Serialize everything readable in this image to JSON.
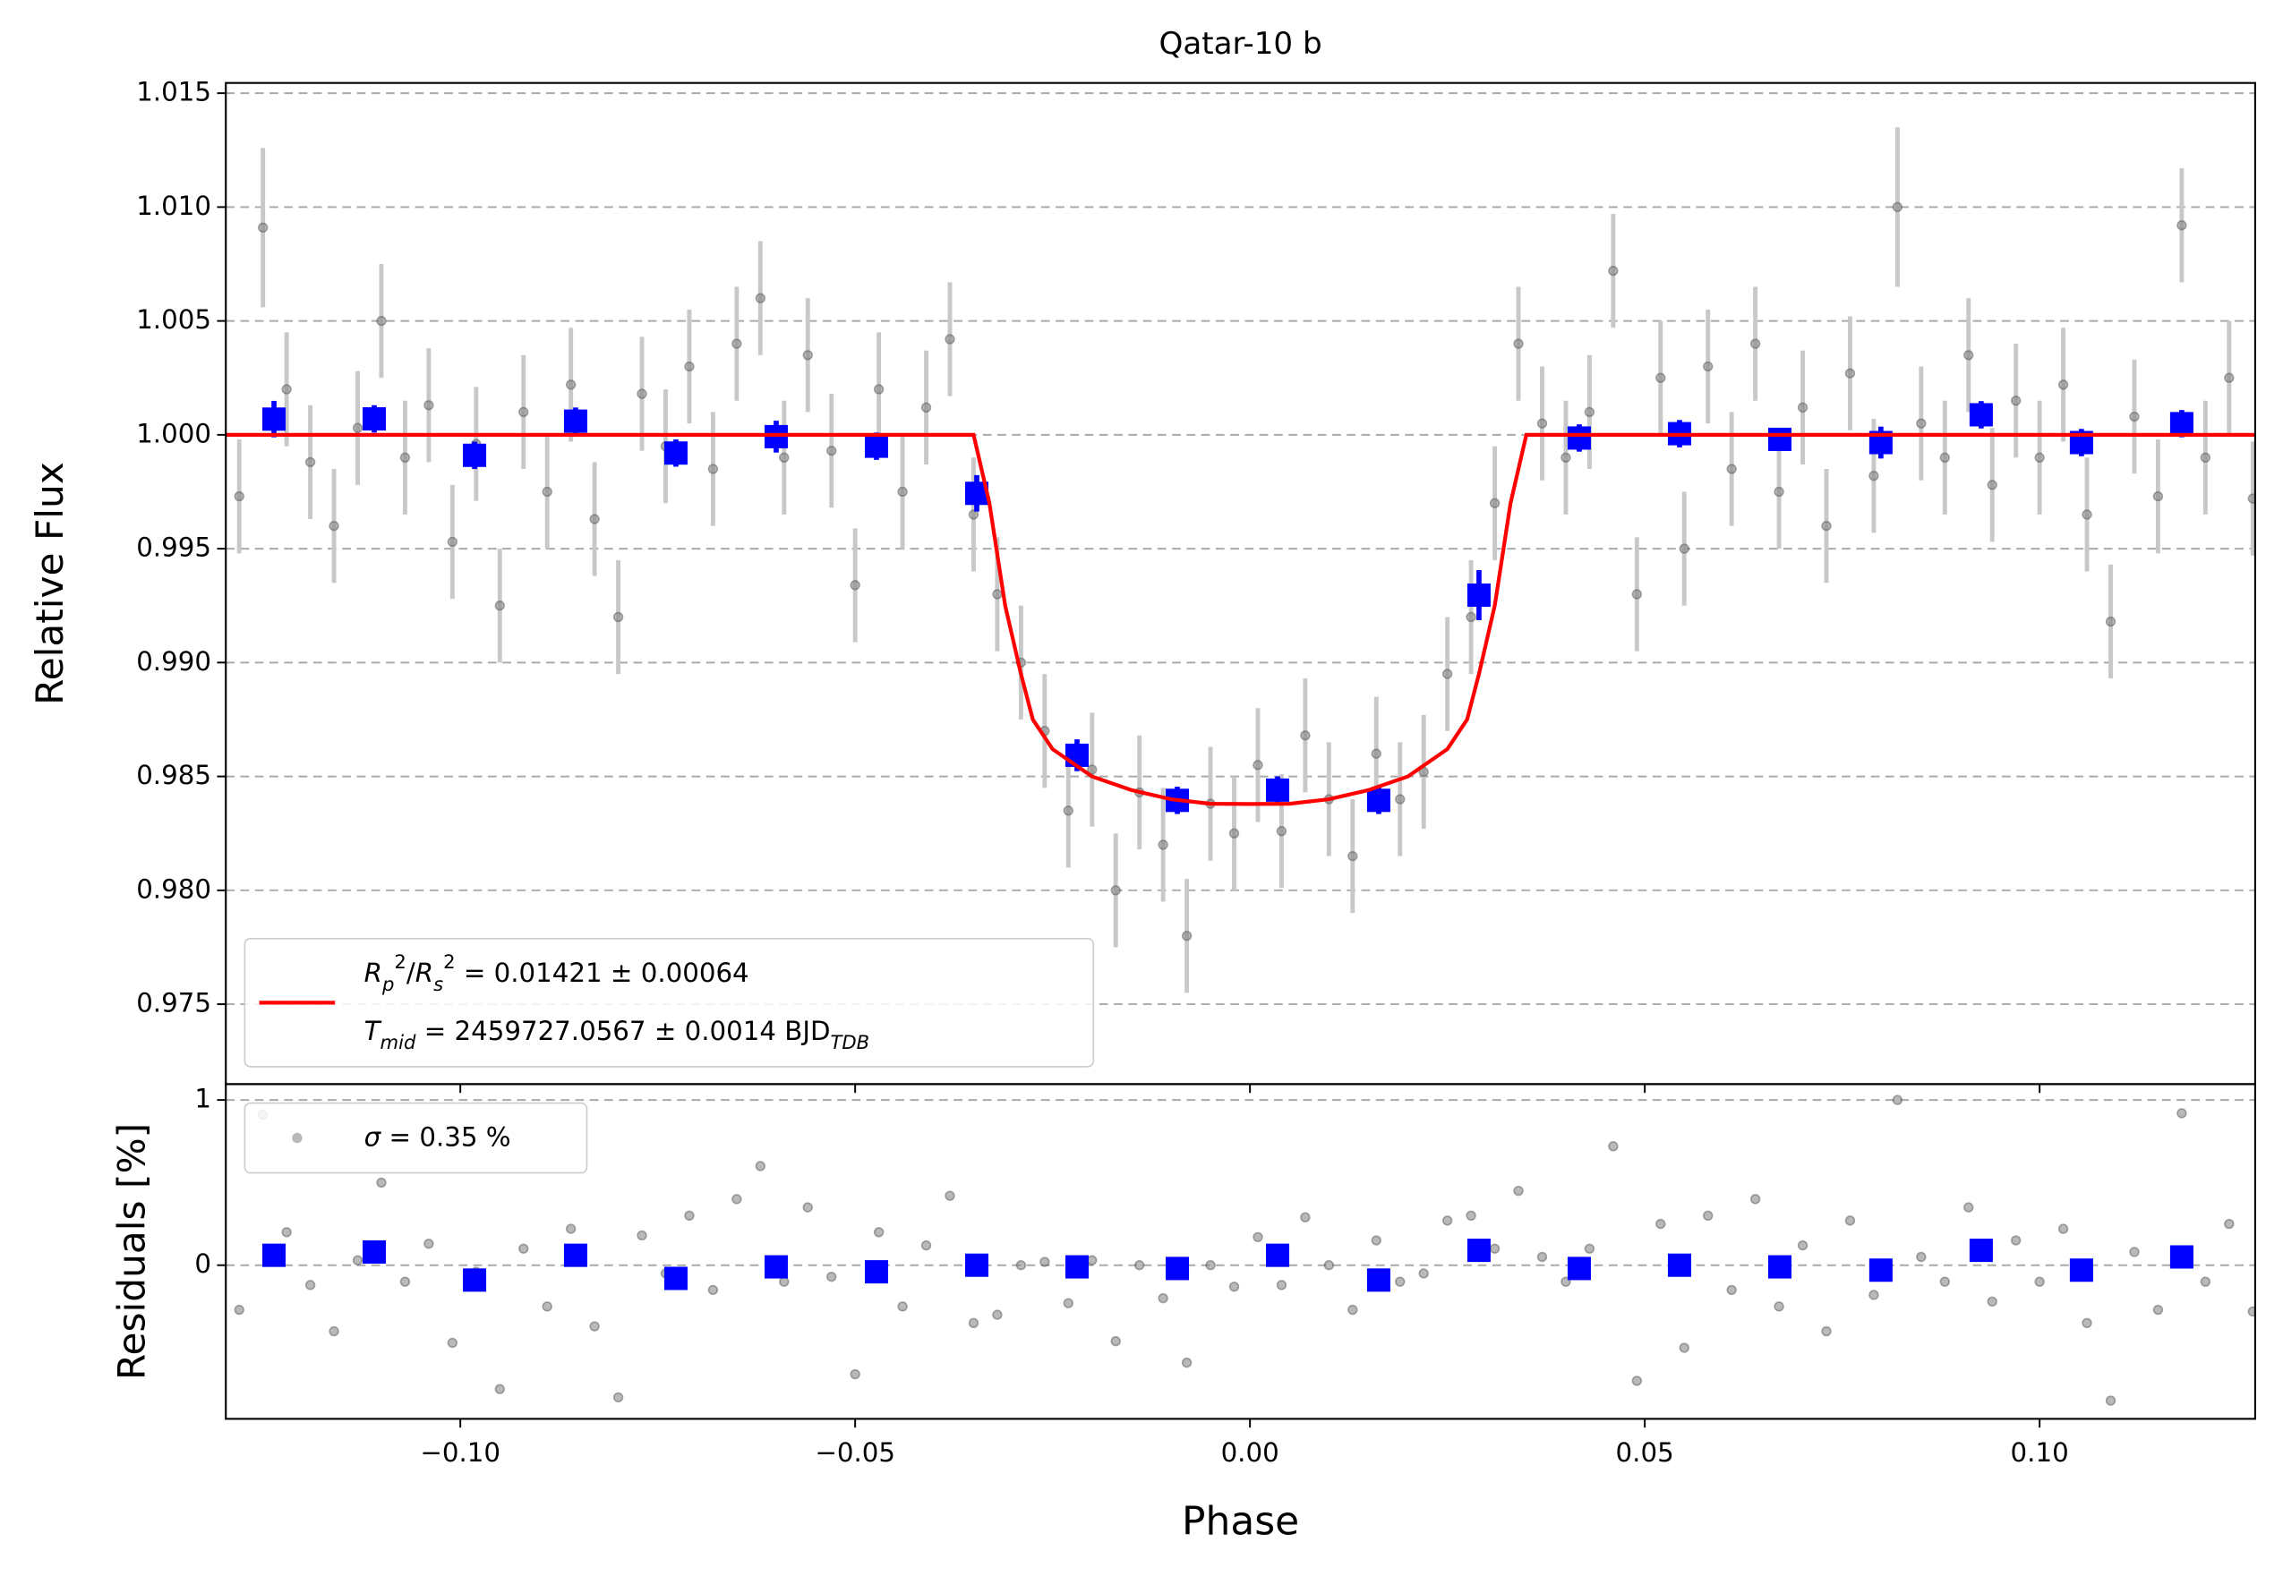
{
  "chart_data": [
    {
      "type": "scatter",
      "title": "Qatar-10 b",
      "ylabel": "Relative Flux",
      "xlim": [
        -0.1297,
        0.1273
      ],
      "ylim": [
        0.97149,
        1.01545
      ],
      "yticks": [
        0.975,
        {
          "value": 0.98,
          "label": "0.980"
        },
        0.985,
        {
          "value": 0.99,
          "label": "0.990"
        },
        0.995,
        {
          "value": 1.0,
          "label": "1.000"
        },
        1.005,
        {
          "value": 1.01,
          "label": "1.010"
        },
        1.015
      ],
      "grid": true,
      "legend": "lower left",
      "series": [
        {
          "kind": "points",
          "color": "#808080",
          "error_color": "#c8c8c8",
          "x": [
            -0.128,
            -0.125,
            -0.122,
            -0.119,
            -0.116,
            -0.113,
            -0.11,
            -0.107,
            -0.104,
            -0.101,
            -0.098,
            -0.095,
            -0.092,
            -0.089,
            -0.086,
            -0.083,
            -0.08,
            -0.077,
            -0.074,
            -0.071,
            -0.068,
            -0.065,
            -0.062,
            -0.059,
            -0.056,
            -0.053,
            -0.05,
            -0.047,
            -0.044,
            -0.041,
            -0.038,
            -0.035,
            -0.032,
            -0.029,
            -0.026,
            -0.023,
            -0.02,
            -0.017,
            -0.014,
            -0.011,
            -0.008,
            -0.005,
            -0.002,
            0.001,
            0.004,
            0.007,
            0.01,
            0.013,
            0.016,
            0.019,
            0.022,
            0.025,
            0.028,
            0.031,
            0.034,
            0.037,
            0.04,
            0.043,
            0.046,
            0.049,
            0.052,
            0.055,
            0.058,
            0.061,
            0.064,
            0.067,
            0.07,
            0.073,
            0.076,
            0.079,
            0.082,
            0.085,
            0.088,
            0.091,
            0.094,
            0.097,
            0.1,
            0.103,
            0.106,
            0.109,
            0.112,
            0.115,
            0.118,
            0.121,
            0.124,
            0.127
          ],
          "values": [
            0.9973,
            1.0091,
            1.002,
            0.9988,
            0.996,
            1.0003,
            1.005,
            0.999,
            1.0013,
            0.9953,
            0.9996,
            0.9925,
            1.001,
            0.9975,
            1.0022,
            0.9963,
            0.992,
            1.0018,
            0.9995,
            1.003,
            0.9985,
            1.004,
            1.006,
            0.999,
            1.0035,
            0.9993,
            0.9934,
            1.002,
            0.9975,
            1.0012,
            1.0042,
            0.9965,
            0.993,
            0.99,
            0.987,
            0.9835,
            0.9853,
            0.98,
            0.9843,
            0.982,
            0.978,
            0.9838,
            0.9825,
            0.9855,
            0.9826,
            0.9868,
            0.984,
            0.9815,
            0.986,
            0.984,
            0.9852,
            0.9895,
            0.992,
            0.997,
            1.004,
            1.0005,
            0.999,
            1.001,
            1.0072,
            0.993,
            1.0025,
            0.995,
            1.003,
            0.9985,
            1.004,
            0.9975,
            1.0012,
            0.996,
            1.0027,
            0.9982,
            1.01,
            1.0005,
            0.999,
            1.0035,
            0.9978,
            1.0015,
            0.999,
            1.0022,
            0.9965,
            0.9918,
            1.0008,
            0.9973,
            1.0092,
            0.999,
            1.0025,
            0.9972
          ],
          "errors": [
            0.0025,
            0.0035,
            0.0025,
            0.0025,
            0.0025,
            0.0025,
            0.0025,
            0.0025,
            0.0025,
            0.0025,
            0.0025,
            0.0025,
            0.0025,
            0.0025,
            0.0025,
            0.0025,
            0.0025,
            0.0025,
            0.0025,
            0.0025,
            0.0025,
            0.0025,
            0.0025,
            0.0025,
            0.0025,
            0.0025,
            0.0025,
            0.0025,
            0.0025,
            0.0025,
            0.0025,
            0.0025,
            0.0025,
            0.0025,
            0.0025,
            0.0025,
            0.0025,
            0.0025,
            0.0025,
            0.0025,
            0.0025,
            0.0025,
            0.0025,
            0.0025,
            0.0025,
            0.0025,
            0.0025,
            0.0025,
            0.0025,
            0.0025,
            0.0025,
            0.0025,
            0.0025,
            0.0025,
            0.0025,
            0.0025,
            0.0025,
            0.0025,
            0.0025,
            0.0025,
            0.0025,
            0.0025,
            0.0025,
            0.0025,
            0.0025,
            0.0025,
            0.0025,
            0.0025,
            0.0025,
            0.0025,
            0.0035,
            0.0025,
            0.0025,
            0.0025,
            0.0025,
            0.0025,
            0.0025,
            0.0025,
            0.0025,
            0.0025,
            0.0025,
            0.0025,
            0.0025,
            0.0025,
            0.0025,
            0.0025
          ]
        },
        {
          "kind": "binned",
          "color": "#0000ff",
          "x": [
            -0.1236,
            -0.1109,
            -0.0982,
            -0.0854,
            -0.0727,
            -0.06,
            -0.0473,
            -0.0346,
            -0.0219,
            -0.0092,
            0.0035,
            0.0163,
            0.029,
            0.0417,
            0.0544,
            0.0671,
            0.0799,
            0.0926,
            0.1053,
            0.118
          ],
          "values": [
            1.00069,
            1.0007,
            0.9991,
            1.0006,
            0.9992,
            0.99992,
            0.9995,
            0.99743,
            0.98593,
            0.98395,
            0.9844,
            0.98395,
            0.99296,
            0.99986,
            1.00005,
            0.9998,
            0.99966,
            1.00088,
            0.99966,
            1.00049
          ],
          "errors": [
            0.0008,
            0.0006,
            0.0006,
            0.0006,
            0.0006,
            0.0007,
            0.0006,
            0.0008,
            0.0007,
            0.0006,
            0.0006,
            0.0006,
            0.0011,
            0.0006,
            0.0006,
            0.0005,
            0.0007,
            0.0006,
            0.0006,
            0.0006
          ]
        },
        {
          "kind": "line",
          "color": "#ff0000",
          "x": [
            -0.1297,
            -0.035,
            -0.033,
            -0.031,
            -0.029,
            -0.0275,
            -0.025,
            -0.02,
            -0.015,
            -0.01,
            -0.005,
            0,
            0.005,
            0.01,
            0.015,
            0.02,
            0.025,
            0.0275,
            0.029,
            0.031,
            0.033,
            0.035,
            0.1273
          ],
          "values": [
            1,
            1,
            0.997,
            0.9925,
            0.9895,
            0.9875,
            0.9862,
            0.985,
            0.9844,
            0.984,
            0.9838,
            0.98379,
            0.9838,
            0.984,
            0.9844,
            0.985,
            0.9862,
            0.9875,
            0.9895,
            0.9925,
            0.997,
            1,
            1
          ],
          "legend": [
            [
              {
                "t": "R",
                "i": true
              },
              {
                "t": "p",
                "i": true,
                "pos": "sub"
              },
              {
                "t": "2",
                "pos": "sup"
              },
              {
                "t": "/"
              },
              {
                "t": "R",
                "i": true
              },
              {
                "t": "s",
                "i": true,
                "pos": "sub"
              },
              {
                "t": "2",
                "pos": "sup"
              },
              {
                "t": " = 0.01421 ± 0.00064"
              }
            ],
            [
              {
                "t": "T",
                "i": true
              },
              {
                "t": "mid",
                "i": true,
                "pos": "sub"
              },
              {
                "t": " = 2459727.0567 ± 0.0014 BJD"
              },
              {
                "t": "TDB",
                "i": true,
                "pos": "sub"
              }
            ]
          ]
        }
      ]
    },
    {
      "type": "scatter",
      "ylabel": "Residuals [%]",
      "xlabel": "Phase",
      "xlim": [
        -0.1297,
        0.1273
      ],
      "ylim": [
        -0.93,
        1.096
      ],
      "xticks": [
        {
          "value": -0.1,
          "label": "−0.10"
        },
        {
          "value": -0.05,
          "label": "−0.05"
        },
        {
          "value": 0,
          "label": "0.00"
        },
        0.05,
        {
          "value": 0.1,
          "label": "0.10"
        }
      ],
      "yticks": [
        0,
        1
      ],
      "grid": true,
      "legend": "upper left",
      "series": [
        {
          "kind": "points",
          "color": "#808080",
          "x": [
            -0.128,
            -0.125,
            -0.122,
            -0.119,
            -0.116,
            -0.113,
            -0.11,
            -0.107,
            -0.104,
            -0.101,
            -0.098,
            -0.095,
            -0.092,
            -0.089,
            -0.086,
            -0.083,
            -0.08,
            -0.077,
            -0.074,
            -0.071,
            -0.068,
            -0.065,
            -0.062,
            -0.059,
            -0.056,
            -0.053,
            -0.05,
            -0.047,
            -0.044,
            -0.041,
            -0.038,
            -0.035,
            -0.032,
            -0.029,
            -0.026,
            -0.023,
            -0.02,
            -0.017,
            -0.014,
            -0.011,
            -0.008,
            -0.005,
            -0.002,
            0.001,
            0.004,
            0.007,
            0.01,
            0.013,
            0.016,
            0.019,
            0.022,
            0.025,
            0.028,
            0.031,
            0.034,
            0.037,
            0.04,
            0.043,
            0.046,
            0.049,
            0.052,
            0.055,
            0.058,
            0.061,
            0.064,
            0.067,
            0.07,
            0.073,
            0.076,
            0.079,
            0.082,
            0.085,
            0.088,
            0.091,
            0.094,
            0.097,
            0.1,
            0.103,
            0.106,
            0.109,
            0.112,
            0.115,
            0.118,
            0.121,
            0.124,
            0.127
          ],
          "values": [
            -0.27,
            0.91,
            0.2,
            -0.12,
            -0.4,
            0.03,
            0.5,
            -0.1,
            0.13,
            -0.47,
            -0.04,
            -0.75,
            0.1,
            -0.25,
            0.22,
            -0.37,
            -0.8,
            0.18,
            -0.05,
            0.3,
            -0.15,
            0.4,
            0.6,
            -0.1,
            0.35,
            -0.07,
            -0.66,
            0.2,
            -0.25,
            0.12,
            0.42,
            -0.35,
            -0.3,
            0.0,
            0.02,
            -0.23,
            0.03,
            -0.46,
            0.0,
            -0.2,
            -0.59,
            0.0,
            -0.13,
            0.17,
            -0.12,
            0.29,
            0.0,
            -0.27,
            0.15,
            -0.1,
            -0.05,
            0.27,
            0.3,
            0.1,
            0.45,
            0.05,
            -0.1,
            0.1,
            0.72,
            -0.7,
            0.25,
            -0.5,
            0.3,
            -0.15,
            0.4,
            -0.25,
            0.12,
            -0.4,
            0.27,
            -0.18,
            1.0,
            0.05,
            -0.1,
            0.35,
            -0.22,
            0.15,
            -0.1,
            0.22,
            -0.35,
            -0.82,
            0.08,
            -0.27,
            0.92,
            -0.1,
            0.25,
            -0.28
          ],
          "legend": [
            [
              {
                "t": "σ",
                "i": true
              },
              {
                "t": " = 0.35 %"
              }
            ]
          ]
        },
        {
          "kind": "binned",
          "color": "#0000ff",
          "x": [
            -0.1236,
            -0.1109,
            -0.0982,
            -0.0854,
            -0.0727,
            -0.06,
            -0.0473,
            -0.0346,
            -0.0219,
            -0.0092,
            0.0035,
            0.0163,
            0.029,
            0.0417,
            0.0544,
            0.0671,
            0.0799,
            0.0926,
            0.1053,
            0.118
          ],
          "values": [
            0.06,
            0.08,
            -0.09,
            0.06,
            -0.08,
            -0.01,
            -0.04,
            0,
            -0.01,
            -0.02,
            0.06,
            -0.09,
            0.09,
            -0.02,
            0,
            -0.01,
            -0.03,
            0.09,
            -0.03,
            0.05
          ]
        }
      ]
    }
  ]
}
